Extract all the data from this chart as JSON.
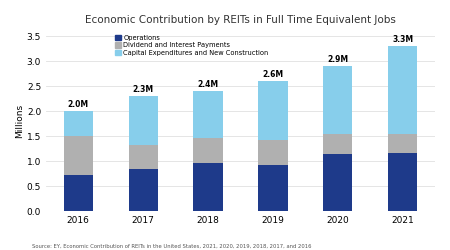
{
  "title": "Economic Contribution by REITs in Full Time Equivalent Jobs",
  "years": [
    "2016",
    "2017",
    "2018",
    "2019",
    "2020",
    "2021"
  ],
  "operations": [
    0.72,
    0.85,
    0.97,
    0.93,
    1.15,
    1.17
  ],
  "dividend": [
    0.78,
    0.47,
    0.5,
    0.5,
    0.4,
    0.37
  ],
  "capex": [
    0.5,
    0.98,
    0.93,
    1.17,
    1.35,
    1.76
  ],
  "totals": [
    "2.0M",
    "2.3M",
    "2.4M",
    "2.6M",
    "2.9M",
    "3.3M"
  ],
  "operations_color": "#1e3a8a",
  "dividend_color": "#b0b0b0",
  "capex_color": "#87ceeb",
  "ylabel": "Millions",
  "ylim": [
    0,
    3.6
  ],
  "yticks": [
    0.0,
    0.5,
    1.0,
    1.5,
    2.0,
    2.5,
    3.0,
    3.5
  ],
  "legend_labels": [
    "Operations",
    "Dividend and Interest Payments",
    "Capital Expenditures and New Construction"
  ],
  "source": "Source: EY, Economic Contribution of REITs in the United States, 2021, 2020, 2019, 2018, 2017, and 2016",
  "background_color": "#ffffff"
}
